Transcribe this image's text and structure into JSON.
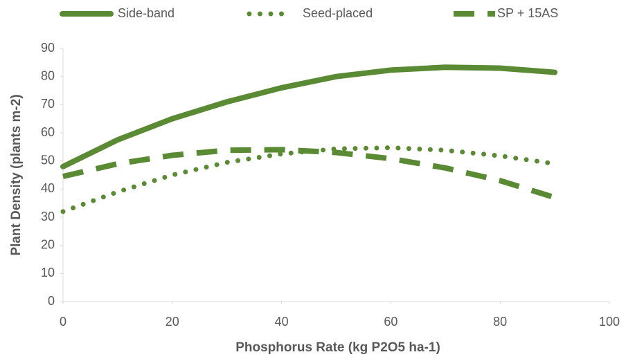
{
  "chart_data": {
    "type": "line",
    "x_label": "Phosphorus Rate (kg P2O5 ha-1)",
    "y_label": "Plant Density (plants m-2)",
    "x": [
      0,
      10,
      20,
      30,
      40,
      50,
      60,
      70,
      80,
      90
    ],
    "series": [
      {
        "name": "Side-band",
        "color": "#5a8a34",
        "line_style": "solid",
        "values": [
          48,
          57.5,
          65,
          71,
          76,
          80,
          82.3,
          83.3,
          83,
          81.5
        ]
      },
      {
        "name": "Seed-placed",
        "color": "#5a8a34",
        "line_style": "dotted",
        "values": [
          32,
          39,
          45,
          49.5,
          52.5,
          54.3,
          54.7,
          53.8,
          51.8,
          49
        ]
      },
      {
        "name": "SP + 15AS",
        "color": "#5a8a34",
        "line_style": "dashed",
        "values": [
          44.5,
          49,
          52,
          53.8,
          54,
          53,
          50.8,
          47.5,
          43,
          37
        ]
      }
    ],
    "xlim": [
      0,
      100
    ],
    "xticks": [
      0,
      20,
      40,
      60,
      80,
      100
    ],
    "ylim": [
      0,
      90
    ],
    "yticks": [
      0,
      10,
      20,
      30,
      40,
      50,
      60,
      70,
      80,
      90
    ],
    "grid": false,
    "legend": "top"
  }
}
